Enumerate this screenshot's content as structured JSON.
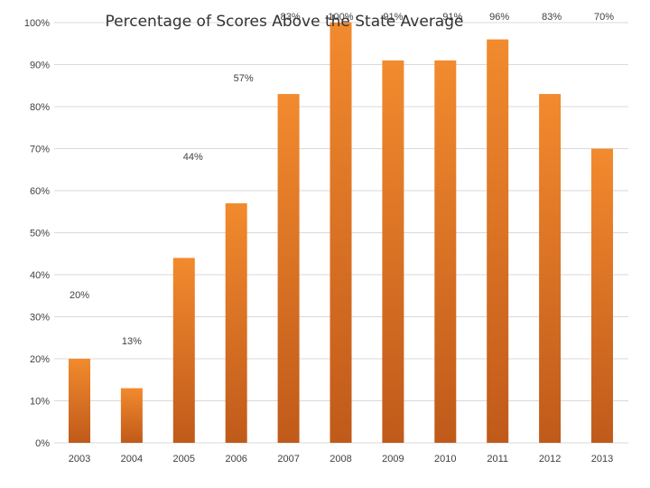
{
  "chart_data": {
    "type": "bar",
    "title": "Percentage of Scores Above the State Average",
    "categories": [
      "2003",
      "2004",
      "2005",
      "2006",
      "2007",
      "2008",
      "2009",
      "2010",
      "2011",
      "2012",
      "2013"
    ],
    "values": [
      20,
      13,
      44,
      57,
      83,
      100,
      91,
      91,
      96,
      83,
      70
    ],
    "data_labels": [
      "20%",
      "13%",
      "44%",
      "57%",
      "83%",
      "100%",
      "91%",
      "91%",
      "96%",
      "83%",
      "70%"
    ],
    "y_ticks": [
      "0%",
      "10%",
      "20%",
      "30%",
      "40%",
      "50%",
      "60%",
      "70%",
      "80%",
      "90%",
      "100%"
    ],
    "ylim": [
      0,
      100
    ],
    "grid": true,
    "xlabel": "",
    "ylabel": "",
    "colors": {
      "bar_top": "#F28A2E",
      "bar_bottom": "#C05A1A",
      "grid": "#D9D9D9"
    }
  }
}
